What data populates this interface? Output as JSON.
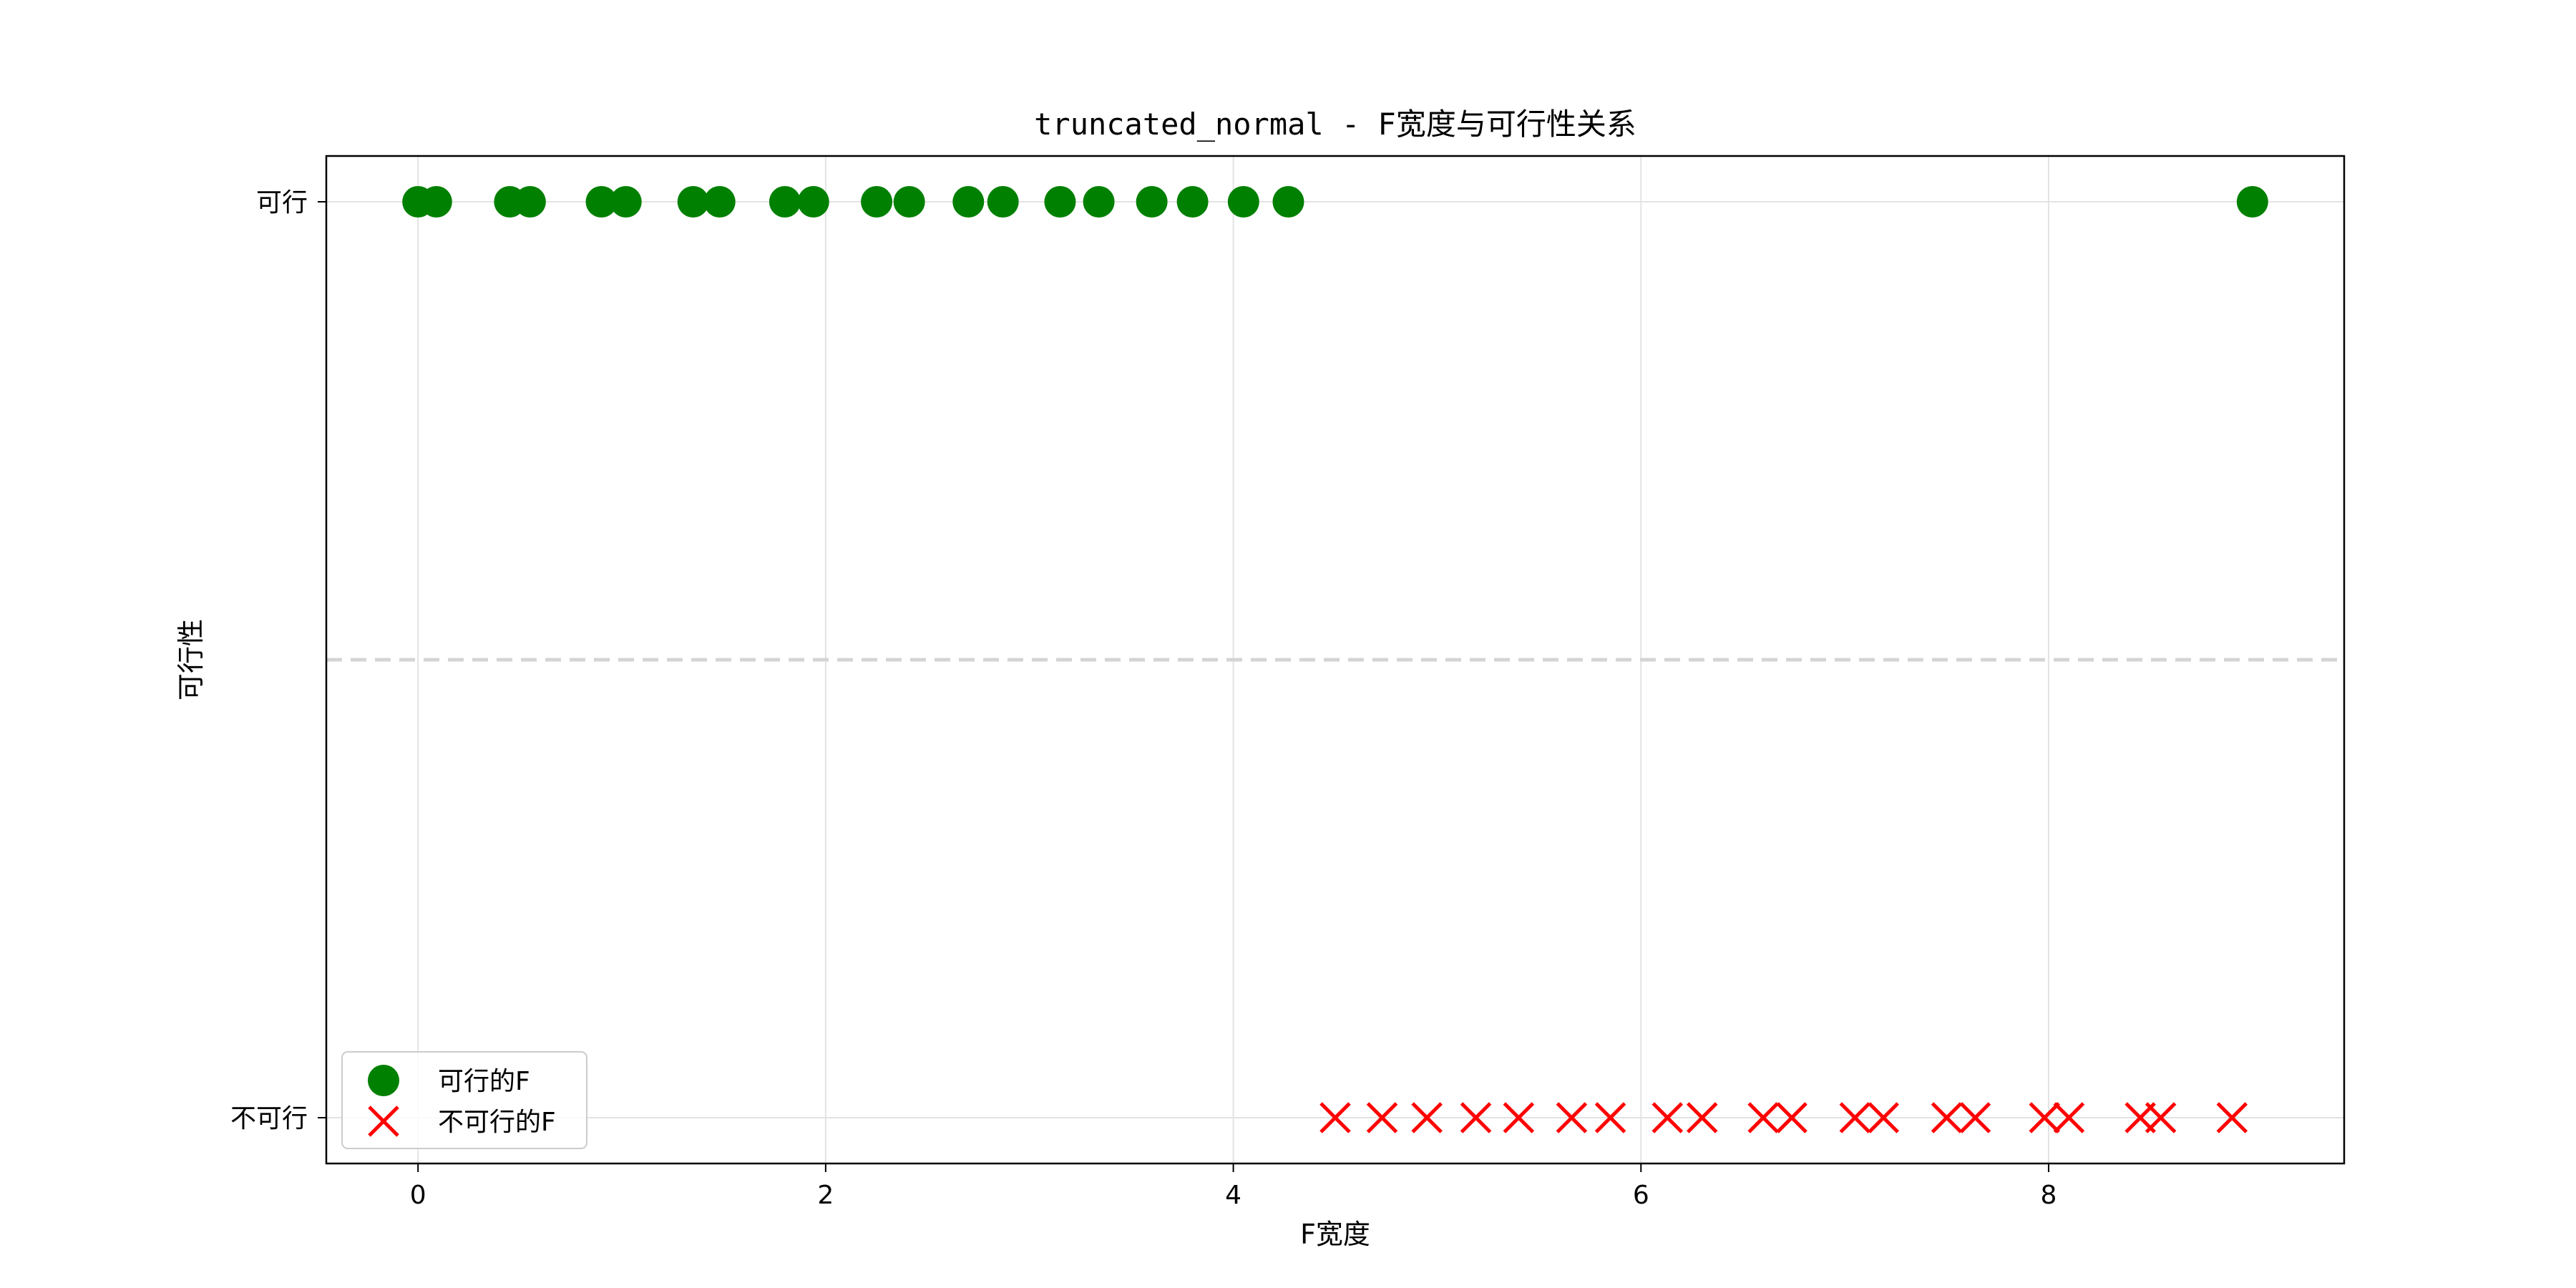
{
  "chart_data": {
    "type": "scatter",
    "title": "truncated_normal - F宽度与可行性关系",
    "xlabel": "F宽度",
    "ylabel": "可行性",
    "xlim": [
      -0.45,
      9.45
    ],
    "ylim": [
      -0.05,
      1.05
    ],
    "x_ticks": [
      0,
      2,
      4,
      6,
      8
    ],
    "y_ticks": [
      {
        "value": 0,
        "label": "不可行"
      },
      {
        "value": 1,
        "label": "可行"
      }
    ],
    "grid": true,
    "threshold_y": 0.5,
    "legend_position": "lower-left",
    "series": [
      {
        "name": "可行的F",
        "marker": "circle",
        "color": "#008000",
        "y": 1,
        "x": [
          0.0,
          0.09,
          0.45,
          0.55,
          0.9,
          1.02,
          1.35,
          1.48,
          1.8,
          1.94,
          2.25,
          2.41,
          2.7,
          2.87,
          3.15,
          3.34,
          3.6,
          3.8,
          4.05,
          4.27,
          9.0
        ]
      },
      {
        "name": "不可行的F",
        "marker": "x",
        "color": "#ff0000",
        "y": 0,
        "x": [
          4.5,
          4.73,
          4.95,
          5.19,
          5.4,
          5.66,
          5.85,
          6.13,
          6.3,
          6.6,
          6.74,
          7.05,
          7.19,
          7.5,
          7.64,
          7.98,
          8.1,
          8.45,
          8.55,
          8.9
        ]
      }
    ]
  }
}
